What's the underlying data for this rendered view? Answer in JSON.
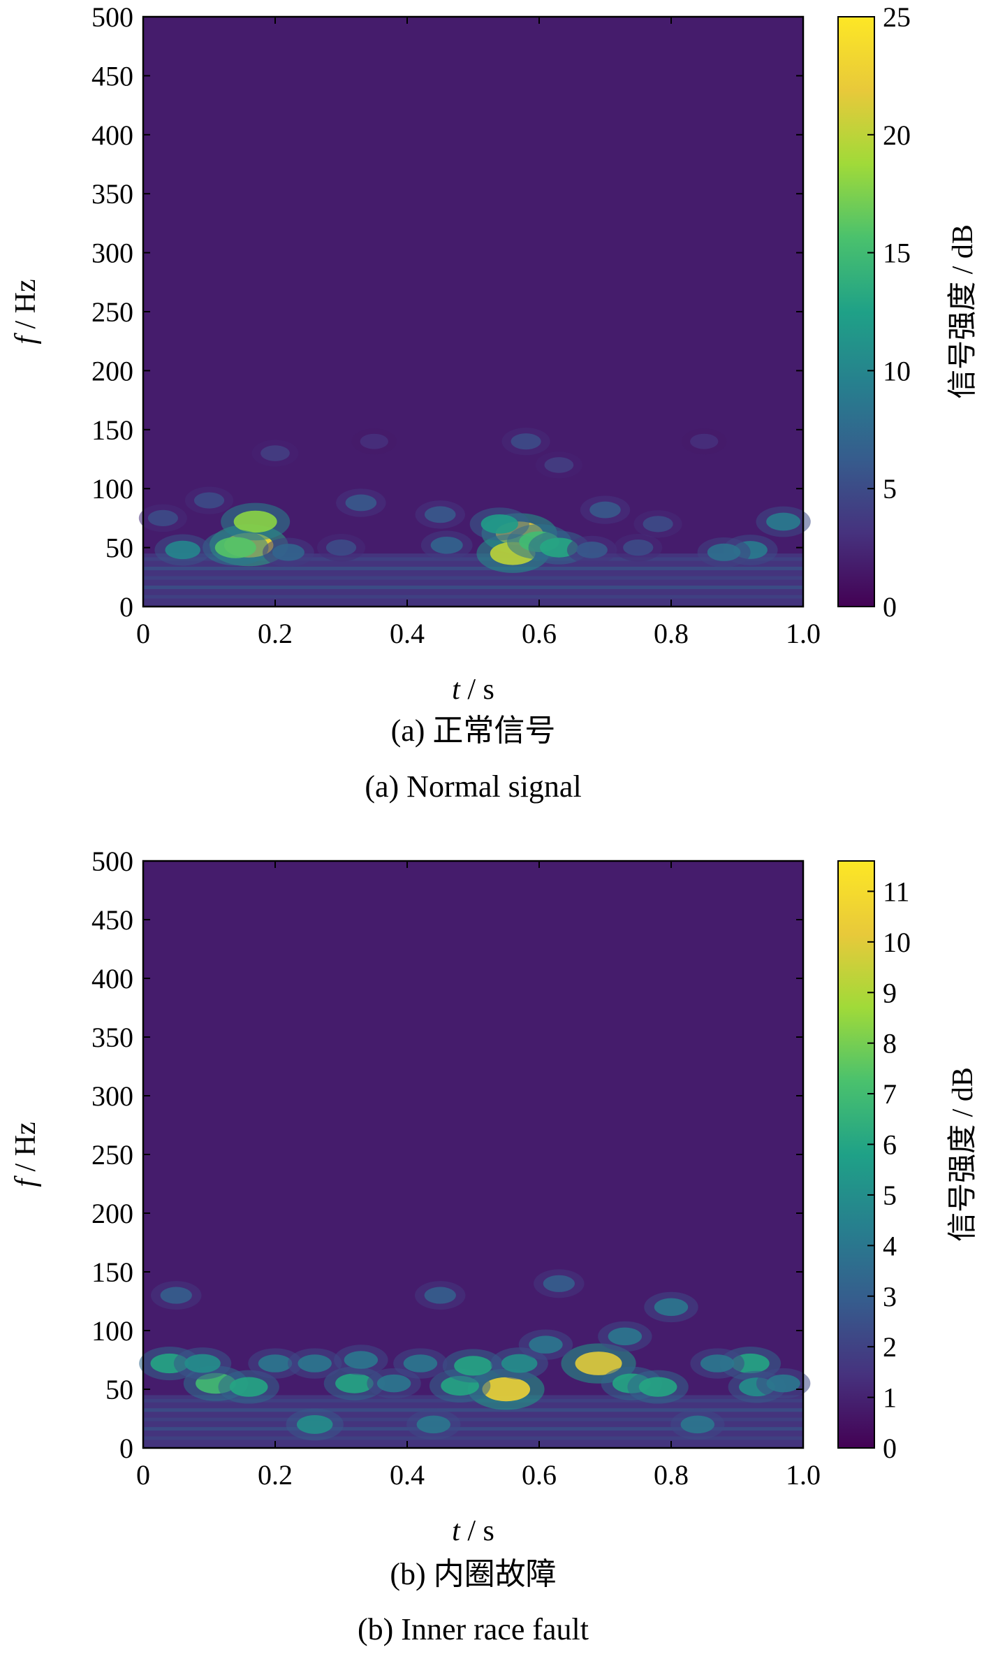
{
  "chart_data": [
    {
      "type": "heatmap",
      "xlabel_var": "t",
      "xlabel_unit": " / s",
      "ylabel_var": "f",
      "ylabel_unit": " / Hz",
      "xlim": [
        0,
        1.0
      ],
      "ylim": [
        0,
        500
      ],
      "xticks": [
        "0",
        "0.2",
        "0.4",
        "0.6",
        "0.8",
        "1.0"
      ],
      "yticks": [
        "0",
        "50",
        "100",
        "150",
        "200",
        "250",
        "300",
        "350",
        "400",
        "450",
        "500"
      ],
      "colorbar": {
        "label": "信号强度 / dB",
        "min": 0,
        "max": 25,
        "ticks": [
          "0",
          "5",
          "10",
          "15",
          "20",
          "25"
        ]
      },
      "caption_cn": "(a) 正常信号",
      "caption_en": "(a) Normal signal",
      "grid": false,
      "hotspots": [
        {
          "t": 0.16,
          "f": 52,
          "value": 24
        },
        {
          "t": 0.17,
          "f": 72,
          "value": 18
        },
        {
          "t": 0.14,
          "f": 50,
          "value": 16
        },
        {
          "t": 0.57,
          "f": 62,
          "value": 22
        },
        {
          "t": 0.56,
          "f": 45,
          "value": 20
        },
        {
          "t": 0.6,
          "f": 55,
          "value": 15
        },
        {
          "t": 0.63,
          "f": 50,
          "value": 13
        },
        {
          "t": 0.54,
          "f": 70,
          "value": 12
        },
        {
          "t": 0.06,
          "f": 48,
          "value": 10
        },
        {
          "t": 0.92,
          "f": 48,
          "value": 9
        },
        {
          "t": 0.97,
          "f": 72,
          "value": 9
        },
        {
          "t": 0.88,
          "f": 46,
          "value": 8
        },
        {
          "t": 0.22,
          "f": 46,
          "value": 7
        },
        {
          "t": 0.33,
          "f": 88,
          "value": 6
        },
        {
          "t": 0.45,
          "f": 78,
          "value": 6
        },
        {
          "t": 0.7,
          "f": 82,
          "value": 6
        },
        {
          "t": 0.78,
          "f": 70,
          "value": 5
        },
        {
          "t": 0.1,
          "f": 90,
          "value": 5
        },
        {
          "t": 0.2,
          "f": 130,
          "value": 4
        },
        {
          "t": 0.58,
          "f": 140,
          "value": 5
        },
        {
          "t": 0.63,
          "f": 120,
          "value": 4
        },
        {
          "t": 0.35,
          "f": 140,
          "value": 3
        },
        {
          "t": 0.85,
          "f": 140,
          "value": 3
        },
        {
          "t": 0.03,
          "f": 75,
          "value": 5
        },
        {
          "t": 0.68,
          "f": 48,
          "value": 6
        },
        {
          "t": 0.3,
          "f": 50,
          "value": 5
        },
        {
          "t": 0.46,
          "f": 52,
          "value": 7
        },
        {
          "t": 0.75,
          "f": 50,
          "value": 5
        }
      ]
    },
    {
      "type": "heatmap",
      "xlabel_var": "t",
      "xlabel_unit": " / s",
      "ylabel_var": "f",
      "ylabel_unit": " / Hz",
      "xlim": [
        0,
        1.0
      ],
      "ylim": [
        0,
        500
      ],
      "xticks": [
        "0",
        "0.2",
        "0.4",
        "0.6",
        "0.8",
        "1.0"
      ],
      "yticks": [
        "0",
        "50",
        "100",
        "150",
        "200",
        "250",
        "300",
        "350",
        "400",
        "450",
        "500"
      ],
      "colorbar": {
        "label": "信号强度 / dB",
        "min": 0,
        "max": 11.6,
        "ticks": [
          "0",
          "1",
          "2",
          "3",
          "4",
          "5",
          "6",
          "7",
          "8",
          "9",
          "10",
          "11"
        ]
      },
      "caption_cn": "(b) 内圈故障",
      "caption_en": "(b) Inner race fault",
      "grid": false,
      "hotspots": [
        {
          "t": 0.55,
          "f": 50,
          "value": 10.5
        },
        {
          "t": 0.69,
          "f": 72,
          "value": 10
        },
        {
          "t": 0.11,
          "f": 55,
          "value": 7
        },
        {
          "t": 0.16,
          "f": 52,
          "value": 6
        },
        {
          "t": 0.04,
          "f": 72,
          "value": 6
        },
        {
          "t": 0.32,
          "f": 55,
          "value": 6
        },
        {
          "t": 0.48,
          "f": 53,
          "value": 6
        },
        {
          "t": 0.5,
          "f": 70,
          "value": 6
        },
        {
          "t": 0.57,
          "f": 72,
          "value": 5
        },
        {
          "t": 0.74,
          "f": 55,
          "value": 6
        },
        {
          "t": 0.78,
          "f": 52,
          "value": 6
        },
        {
          "t": 0.92,
          "f": 72,
          "value": 6
        },
        {
          "t": 0.93,
          "f": 52,
          "value": 5
        },
        {
          "t": 0.09,
          "f": 72,
          "value": 5
        },
        {
          "t": 0.2,
          "f": 72,
          "value": 4
        },
        {
          "t": 0.26,
          "f": 72,
          "value": 4
        },
        {
          "t": 0.33,
          "f": 75,
          "value": 4
        },
        {
          "t": 0.42,
          "f": 72,
          "value": 4
        },
        {
          "t": 0.61,
          "f": 88,
          "value": 4
        },
        {
          "t": 0.8,
          "f": 120,
          "value": 4
        },
        {
          "t": 0.73,
          "f": 95,
          "value": 4
        },
        {
          "t": 0.87,
          "f": 72,
          "value": 4
        },
        {
          "t": 0.26,
          "f": 20,
          "value": 5
        },
        {
          "t": 0.44,
          "f": 20,
          "value": 4
        },
        {
          "t": 0.84,
          "f": 20,
          "value": 4
        },
        {
          "t": 0.97,
          "f": 55,
          "value": 4
        },
        {
          "t": 0.05,
          "f": 130,
          "value": 3
        },
        {
          "t": 0.45,
          "f": 130,
          "value": 3
        },
        {
          "t": 0.63,
          "f": 140,
          "value": 3
        },
        {
          "t": 0.38,
          "f": 55,
          "value": 4
        }
      ]
    }
  ]
}
